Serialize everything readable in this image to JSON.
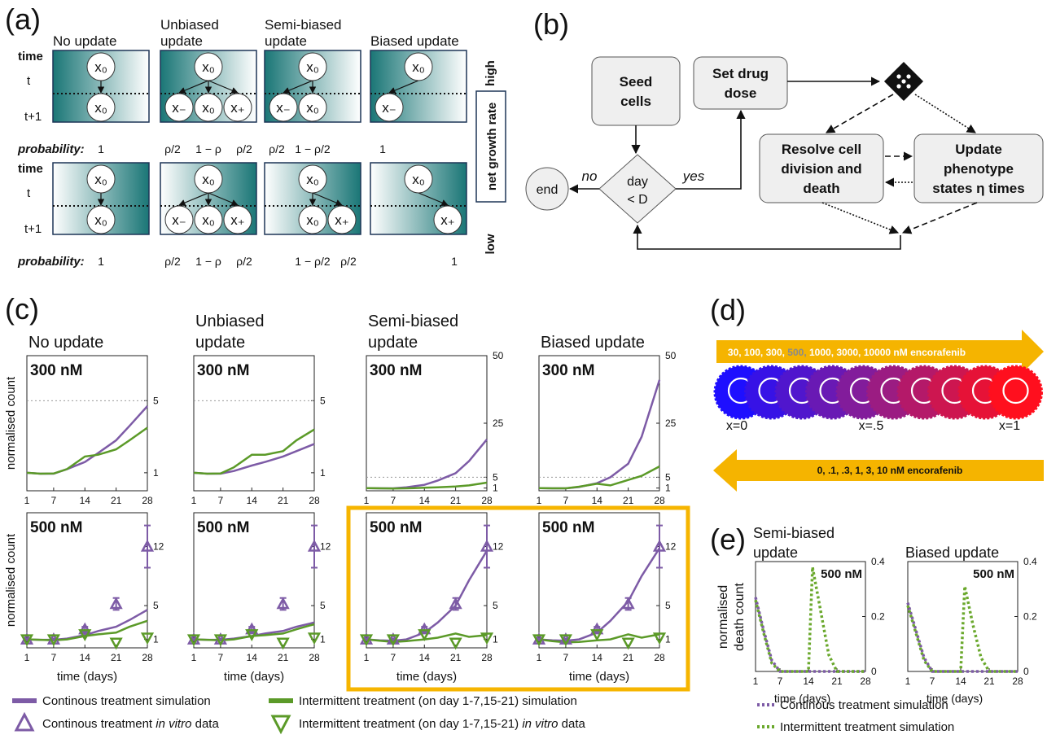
{
  "panel_a": {
    "label": "(a)",
    "column_headers": [
      [
        "No update"
      ],
      [
        "Unbiased",
        "update"
      ],
      [
        "Semi-biased",
        "update"
      ],
      [
        "Biased update"
      ]
    ],
    "row_labels": {
      "time": "time",
      "t": "t",
      "t_next": "t+1",
      "probability": "probability:"
    },
    "side": {
      "high": "high",
      "low": "low",
      "axis": "net growth rate"
    },
    "rows": [
      {
        "cells": [
          {
            "top": "x₀",
            "bottom": [
              "x₀"
            ],
            "probabilities": [
              "1"
            ]
          },
          {
            "top": "x₀",
            "bottom": [
              "x₋",
              "x₀",
              "x₊"
            ],
            "probabilities": [
              "ρ/2",
              "1 − ρ",
              "ρ/2"
            ]
          },
          {
            "top": "x₀",
            "bottom": [
              "x₋",
              "x₀"
            ],
            "probabilities": [
              "ρ/2",
              "1 − ρ/2"
            ]
          },
          {
            "top": "x₀",
            "bottom": [
              "x₋"
            ],
            "probabilities": [
              "1"
            ]
          }
        ]
      },
      {
        "cells": [
          {
            "top": "x₀",
            "bottom": [
              "x₀"
            ],
            "probabilities": [
              "1"
            ]
          },
          {
            "top": "x₀",
            "bottom": [
              "x₋",
              "x₀",
              "x₊"
            ],
            "probabilities": [
              "ρ/2",
              "1 − ρ",
              "ρ/2"
            ]
          },
          {
            "top": "x₀",
            "bottom": [
              "x₀",
              "x₊"
            ],
            "probabilities": [
              "1 − ρ/2",
              "ρ/2"
            ]
          },
          {
            "top": "x₀",
            "bottom": [
              "x₊"
            ],
            "probabilities": [
              "1"
            ]
          }
        ]
      }
    ]
  },
  "panel_b": {
    "label": "(b)",
    "seed": [
      "Seed",
      "cells"
    ],
    "dose": [
      "Set drug",
      "dose"
    ],
    "resolve": [
      "Resolve cell",
      "division and",
      "death"
    ],
    "update": [
      "Update",
      "phenotype",
      "states η times"
    ],
    "decision": [
      "day",
      "< D"
    ],
    "end": "end",
    "no": "no",
    "yes": "yes"
  },
  "panel_c": {
    "label": "(c)",
    "y_label": "normalised count",
    "x_label": "time (days)",
    "column_headers": [
      [
        "No update"
      ],
      [
        "Unbiased",
        "update"
      ],
      [
        "Semi-biased",
        "update"
      ],
      [
        "Biased update"
      ]
    ],
    "charts": [
      {
        "type": "line",
        "dose": "300 nM",
        "x": [
          1,
          4,
          7,
          10,
          14,
          17,
          21,
          24,
          28
        ],
        "xlim": [
          1,
          28
        ],
        "xticks": [
          1,
          7,
          14,
          21,
          28
        ],
        "ylim": [
          0,
          7.5
        ],
        "yticks": [
          1,
          5
        ],
        "hline": 5,
        "series": [
          {
            "color": "#7d5ba6",
            "values": [
              1,
              0.95,
              0.95,
              1.2,
              1.6,
              2.1,
              2.8,
              3.6,
              4.7
            ]
          },
          {
            "color": "#5b9a28",
            "values": [
              1,
              0.95,
              0.96,
              1.2,
              1.9,
              2.0,
              2.3,
              2.8,
              3.5
            ]
          }
        ]
      },
      {
        "type": "line",
        "dose": "300 nM",
        "x": [
          1,
          4,
          7,
          10,
          14,
          17,
          21,
          24,
          28
        ],
        "xlim": [
          1,
          28
        ],
        "xticks": [
          1,
          7,
          14,
          21,
          28
        ],
        "ylim": [
          0,
          7.5
        ],
        "yticks": [
          1,
          5
        ],
        "hline": 5,
        "series": [
          {
            "color": "#7d5ba6",
            "values": [
              1,
              0.95,
              0.95,
              1.1,
              1.4,
              1.6,
              1.9,
              2.2,
              2.6
            ]
          },
          {
            "color": "#5b9a28",
            "values": [
              1,
              0.95,
              0.96,
              1.3,
              2.0,
              2.0,
              2.2,
              2.8,
              3.4
            ]
          }
        ]
      },
      {
        "type": "line",
        "dose": "300 nM",
        "x": [
          1,
          4,
          7,
          10,
          14,
          17,
          21,
          24,
          28
        ],
        "xlim": [
          1,
          28
        ],
        "xticks": [
          1,
          7,
          14,
          21,
          28
        ],
        "ylim": [
          0,
          50
        ],
        "yticks": [
          1,
          5,
          25,
          50
        ],
        "hline": 5,
        "series": [
          {
            "color": "#7d5ba6",
            "values": [
              1,
              0.9,
              0.9,
              1.3,
              2.2,
              3.8,
              6.5,
              11,
              19
            ]
          },
          {
            "color": "#5b9a28",
            "values": [
              1,
              0.9,
              0.8,
              0.9,
              1.1,
              1.3,
              1.6,
              2,
              3
            ]
          }
        ]
      },
      {
        "type": "line",
        "dose": "300 nM",
        "x": [
          1,
          4,
          7,
          10,
          14,
          17,
          21,
          24,
          28
        ],
        "xlim": [
          1,
          28
        ],
        "xticks": [
          1,
          7,
          14,
          21,
          28
        ],
        "ylim": [
          0,
          50
        ],
        "yticks": [
          1,
          5,
          25,
          50
        ],
        "hline": 5,
        "series": [
          {
            "color": "#7d5ba6",
            "values": [
              1,
              0.9,
              0.9,
              1.4,
              2.8,
              5,
              10,
              20,
              41
            ]
          },
          {
            "color": "#5b9a28",
            "values": [
              1,
              0.9,
              0.9,
              1.5,
              2.6,
              2,
              4,
              5.5,
              9
            ]
          }
        ]
      },
      {
        "type": "line",
        "dose": "500 nM",
        "x": [
          1,
          4,
          7,
          10,
          14,
          17,
          21,
          24,
          28
        ],
        "xlim": [
          1,
          28
        ],
        "xticks": [
          1,
          7,
          14,
          21,
          28
        ],
        "ylim": [
          0,
          16
        ],
        "yticks": [
          1,
          5,
          12
        ],
        "series": [
          {
            "color": "#7d5ba6",
            "values": [
              1,
              0.95,
              0.95,
              1.1,
              1.5,
              2.0,
              2.5,
              3.3,
              4.5
            ]
          },
          {
            "color": "#5b9a28",
            "values": [
              1,
              0.95,
              0.9,
              1.0,
              1.4,
              1.6,
              1.8,
              2.5,
              3.2
            ]
          }
        ],
        "points": {
          "x": [
            1,
            7,
            14,
            21,
            28
          ],
          "continuous": [
            1,
            1,
            2.2,
            5.2,
            12
          ],
          "continuous_err": [
            0.1,
            0.1,
            0.3,
            0.7,
            2.5
          ],
          "intermittent": [
            1,
            1,
            1.6,
            0.6,
            1.2
          ]
        }
      },
      {
        "type": "line",
        "dose": "500 nM",
        "x": [
          1,
          4,
          7,
          10,
          14,
          17,
          21,
          24,
          28
        ],
        "xlim": [
          1,
          28
        ],
        "xticks": [
          1,
          7,
          14,
          21,
          28
        ],
        "ylim": [
          0,
          16
        ],
        "yticks": [
          1,
          5,
          12
        ],
        "series": [
          {
            "color": "#7d5ba6",
            "values": [
              1,
              0.95,
              0.95,
              1.1,
              1.4,
              1.7,
              2.0,
              2.5,
              3.0
            ]
          },
          {
            "color": "#5b9a28",
            "values": [
              1,
              0.95,
              0.9,
              1.0,
              1.4,
              1.5,
              1.7,
              2.2,
              2.8
            ]
          }
        ],
        "points": {
          "x": [
            1,
            7,
            14,
            21,
            28
          ],
          "continuous": [
            1,
            1,
            2.2,
            5.2,
            12
          ],
          "continuous_err": [
            0.1,
            0.1,
            0.3,
            0.7,
            2.5
          ],
          "intermittent": [
            1,
            1,
            1.6,
            0.6,
            1.2
          ]
        }
      },
      {
        "type": "line",
        "dose": "500 nM",
        "x": [
          1,
          4,
          7,
          10,
          14,
          17,
          21,
          24,
          28
        ],
        "xlim": [
          1,
          28
        ],
        "xticks": [
          1,
          7,
          14,
          21,
          28
        ],
        "ylim": [
          0,
          16
        ],
        "yticks": [
          1,
          5,
          12
        ],
        "series": [
          {
            "color": "#7d5ba6",
            "values": [
              1,
              0.9,
              0.85,
              1.0,
              1.8,
              3.0,
              5.0,
              8,
              11.5
            ]
          },
          {
            "color": "#5b9a28",
            "values": [
              1,
              0.85,
              0.7,
              0.8,
              1.0,
              1.2,
              1.7,
              1.3,
              1.5
            ]
          }
        ],
        "points": {
          "x": [
            1,
            7,
            14,
            21,
            28
          ],
          "continuous": [
            1,
            1,
            2.2,
            5.2,
            12
          ],
          "continuous_err": [
            0.1,
            0.1,
            0.3,
            0.7,
            2.5
          ],
          "intermittent": [
            1,
            1,
            1.6,
            0.6,
            1.2
          ]
        }
      },
      {
        "type": "line",
        "dose": "500 nM",
        "x": [
          1,
          4,
          7,
          10,
          14,
          17,
          21,
          24,
          28
        ],
        "xlim": [
          1,
          28
        ],
        "xticks": [
          1,
          7,
          14,
          21,
          28
        ],
        "ylim": [
          0,
          16
        ],
        "yticks": [
          1,
          5,
          12
        ],
        "series": [
          {
            "color": "#7d5ba6",
            "values": [
              1,
              0.9,
              0.85,
              1.0,
              1.8,
              3.2,
              5.5,
              8.5,
              11.8
            ]
          },
          {
            "color": "#5b9a28",
            "values": [
              1,
              0.8,
              0.65,
              0.7,
              0.9,
              1.0,
              1.6,
              1.2,
              1.6
            ]
          }
        ],
        "points": {
          "x": [
            1,
            7,
            14,
            21,
            28
          ],
          "continuous": [
            1,
            1,
            2.2,
            5.2,
            12
          ],
          "continuous_err": [
            0.1,
            0.1,
            0.3,
            0.7,
            2.5
          ],
          "intermittent": [
            1,
            1,
            1.6,
            0.6,
            1.2
          ]
        }
      }
    ],
    "legend": [
      {
        "text": [
          "Continous treatment simulation"
        ],
        "color": "#7d5ba6",
        "marker": "line"
      },
      {
        "text": [
          "Continous treatment ",
          "in vitro",
          " data"
        ],
        "color": "#7d5ba6",
        "marker": "triangle-up"
      },
      {
        "text": [
          "Intermittent treatment (on day 1-7,15-21) simulation"
        ],
        "color": "#5b9a28",
        "marker": "line"
      },
      {
        "text": [
          "Intermittent treatment (on day 1-7,15-21) ",
          "in vitro",
          " data"
        ],
        "color": "#5b9a28",
        "marker": "triangle-down"
      }
    ]
  },
  "panel_d": {
    "label": "(d)",
    "top_arrow": [
      "30, 100, 300, ",
      "500, ",
      "1000, 3000, 10000 nM encorafenib"
    ],
    "bottom_arrow": "0, .1, .3, 1, 3, 10 nM encorafenib",
    "x_labels": [
      "x=0",
      "x=.5",
      "x=1"
    ]
  },
  "panel_e": {
    "label": "(e)",
    "y_label": [
      "normalised",
      "death count"
    ],
    "x_label": "time (days)",
    "charts": [
      {
        "type": "line",
        "title": [
          "Semi-biased",
          "update"
        ],
        "dose": "500 nM",
        "x": [
          1,
          3,
          5,
          7,
          14,
          15,
          17,
          19,
          21,
          28
        ],
        "xlim": [
          1,
          28
        ],
        "xticks": [
          1,
          7,
          14,
          21,
          28
        ],
        "ylim": [
          0,
          0.4
        ],
        "yticks": [
          0,
          0.2,
          0.4
        ],
        "series": [
          {
            "color": "#7d5ba6",
            "values": [
              0.27,
              0.15,
              0.04,
              0,
              0,
              0,
              0,
              0,
              0,
              0
            ]
          },
          {
            "color": "#6aa82c",
            "values": [
              0.26,
              0.14,
              0.03,
              0,
              0,
              0.38,
              0.22,
              0.06,
              0,
              0
            ]
          }
        ]
      },
      {
        "type": "line",
        "title": [
          "Biased update"
        ],
        "dose": "500 nM",
        "x": [
          1,
          3,
          5,
          7,
          14,
          15,
          17,
          19,
          21,
          28
        ],
        "xlim": [
          1,
          28
        ],
        "xticks": [
          1,
          7,
          14,
          21,
          28
        ],
        "ylim": [
          0,
          0.4
        ],
        "yticks": [
          0,
          0.2,
          0.4
        ],
        "series": [
          {
            "color": "#7d5ba6",
            "values": [
              0.25,
              0.15,
              0.05,
              0,
              0,
              0,
              0,
              0,
              0,
              0
            ]
          },
          {
            "color": "#6aa82c",
            "values": [
              0.24,
              0.14,
              0.04,
              0,
              0,
              0.31,
              0.17,
              0.05,
              0,
              0
            ]
          }
        ]
      }
    ],
    "legend": [
      {
        "text": "Continous treatment simulation",
        "color": "#7d5ba6"
      },
      {
        "text": "Intermittent treatment simulation",
        "color": "#6aa82c"
      }
    ]
  }
}
